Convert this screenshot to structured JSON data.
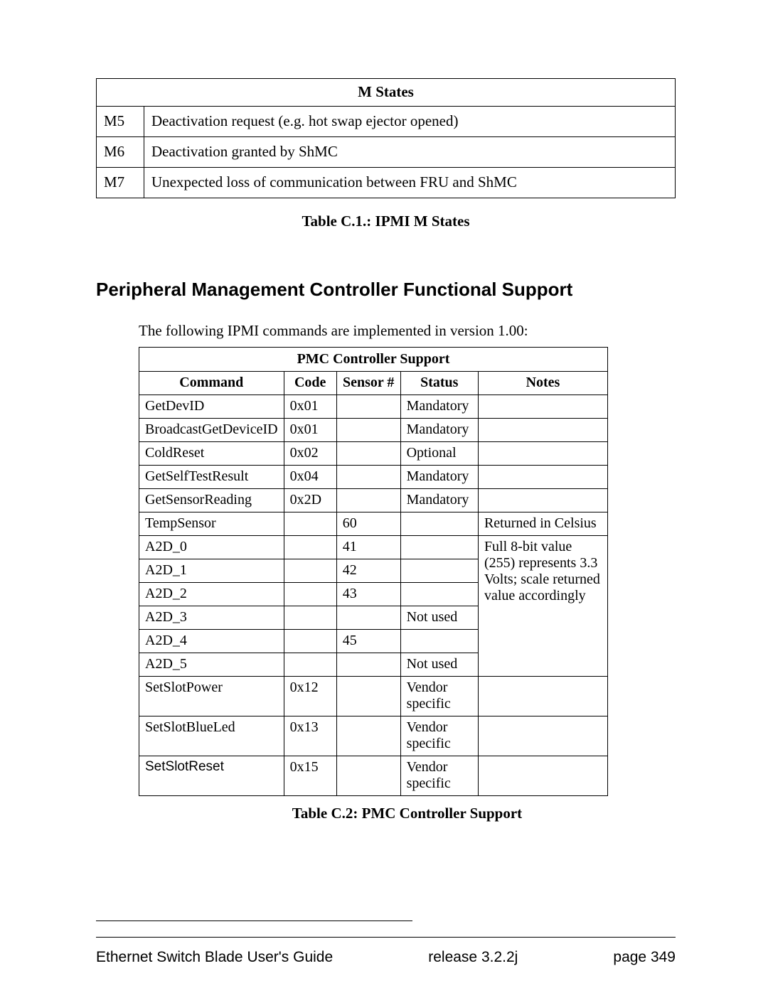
{
  "mstates": {
    "header": "M States",
    "rows": [
      {
        "code": "M5",
        "desc": "Deactivation request (e.g. hot swap ejector opened)"
      },
      {
        "code": "M6",
        "desc": "Deactivation granted by ShMC"
      },
      {
        "code": "M7",
        "desc": "Unexpected loss of communication between FRU and ShMC"
      }
    ],
    "caption": "Table C.1.: IPMI M States"
  },
  "section_heading": "Peripheral Management Controller Functional Support",
  "intro": "The following IPMI commands are implemented in version 1.00:",
  "pmc": {
    "title": "PMC Controller Support",
    "headers": {
      "command": "Command",
      "code": "Code",
      "sensor": "Sensor #",
      "status": "Status",
      "notes": "Notes"
    },
    "rows": [
      {
        "command": "GetDevID",
        "code": "0x01",
        "sensor": "",
        "status": "Mandatory",
        "notes": ""
      },
      {
        "command": "BroadcastGetDeviceID",
        "code": "0x01",
        "sensor": "",
        "status": "Mandatory",
        "notes": ""
      },
      {
        "command": "ColdReset",
        "code": "0x02",
        "sensor": "",
        "status": "Optional",
        "notes": ""
      },
      {
        "command": "GetSelfTestResult",
        "code": "0x04",
        "sensor": "",
        "status": "Mandatory",
        "notes": ""
      },
      {
        "command": "GetSensorReading",
        "code": "0x2D",
        "sensor": "",
        "status": "Mandatory",
        "notes": ""
      },
      {
        "command": "TempSensor",
        "code": "",
        "sensor": "60",
        "status": "",
        "notes": "Returned in Celsius"
      },
      {
        "command": "A2D_0",
        "code": "",
        "sensor": "41",
        "status": "",
        "notes_rowspan_start": true,
        "notes": "Full 8-bit value (255) represents 3.3 Volts; scale returned value accordingly"
      },
      {
        "command": "A2D_1",
        "code": "",
        "sensor": "42",
        "status": ""
      },
      {
        "command": "A2D_2",
        "code": "",
        "sensor": "43",
        "status": ""
      },
      {
        "command": "A2D_3",
        "code": "",
        "sensor": "",
        "status": "Not used"
      },
      {
        "command": "A2D_4",
        "code": "",
        "sensor": "45",
        "status": ""
      },
      {
        "command": "A2D_5",
        "code": "",
        "sensor": "",
        "status": "Not used"
      },
      {
        "command": "SetSlotPower",
        "code": "0x12",
        "sensor": "",
        "status": "Vendor specific",
        "notes": ""
      },
      {
        "command": "SetSlotBlueLed",
        "code": "0x13",
        "sensor": "",
        "status": "Vendor specific",
        "notes": ""
      },
      {
        "command": "SetSlotReset",
        "code": "0x15",
        "sensor": "",
        "status": "Vendor specific",
        "notes": "",
        "arial": true
      }
    ],
    "notes_rowspan": 6,
    "caption": "Table C.2: PMC Controller Support"
  },
  "footer": {
    "left": "Ethernet Switch Blade User's Guide",
    "mid": "release  3.2.2j",
    "right": "page  349"
  }
}
